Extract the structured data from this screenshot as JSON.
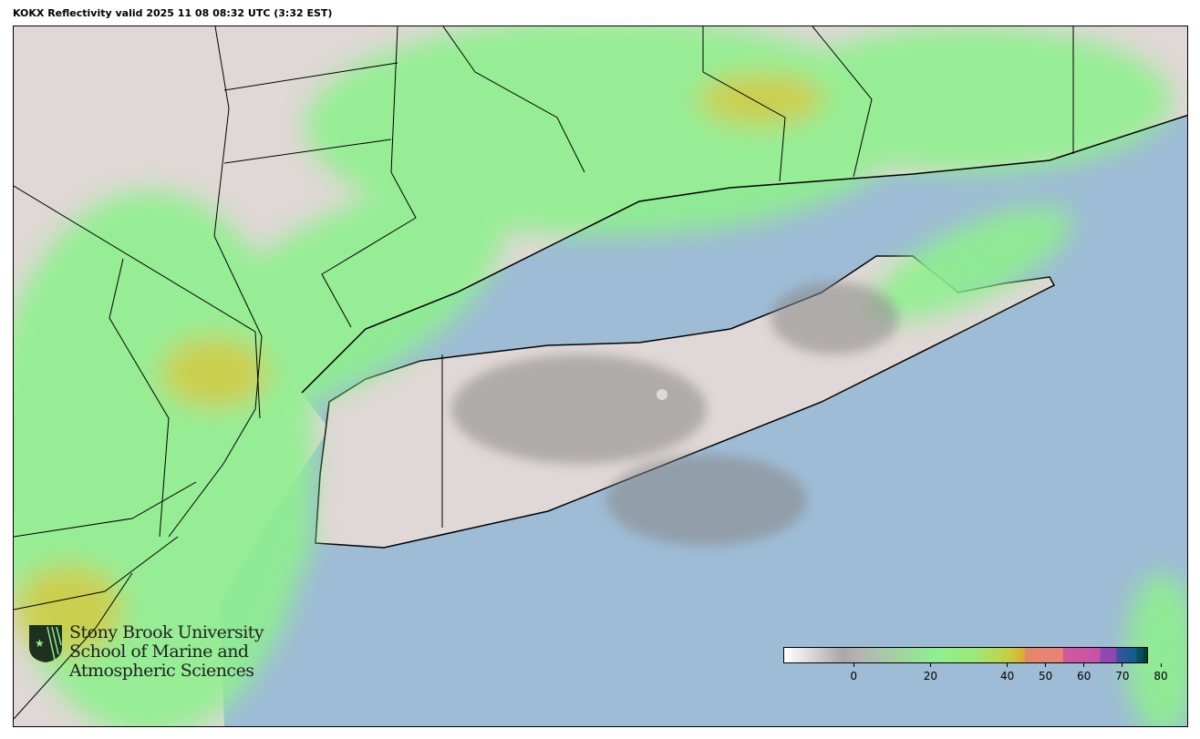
{
  "title": "KOKX Reflectivity valid 2025 11 08 08:32 UTC (3:32 EST)",
  "logo": {
    "lines": [
      "Stony Brook University",
      "School of Marine and",
      "Atmospheric Sciences"
    ],
    "icon": "shield-star-icon"
  },
  "colorbar": {
    "range": [
      -15,
      80
    ],
    "units_label": "",
    "ticks": [
      0,
      20,
      40,
      50,
      60,
      70,
      80
    ],
    "tick_labels": [
      "0",
      "20",
      "40",
      "50",
      "60",
      "70",
      "80"
    ]
  },
  "colors": {
    "ocean": "#9fbcd6",
    "land": "#e0d8d6",
    "light_echo": "#8ef08e",
    "moderate_echo": "#dbaa37"
  },
  "radar_site": "KOKX"
}
